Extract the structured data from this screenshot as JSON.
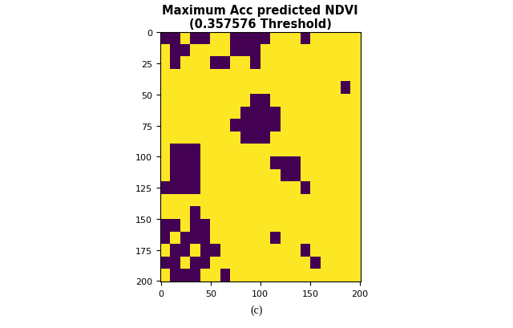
{
  "chart_data": {
    "type": "heatmap",
    "title": "Maximum Acc predicted NDVI\n(0.357576 Threshold)",
    "caption": "(c)",
    "xlim": [
      -0.5,
      200.5
    ],
    "ylim": [
      200.5,
      -0.5
    ],
    "xticks": [
      0,
      50,
      100,
      150,
      200
    ],
    "yticks": [
      0,
      25,
      50,
      75,
      100,
      125,
      150,
      175,
      200
    ],
    "colors": [
      "#440154",
      "#fde725"
    ],
    "grid": false,
    "cells": [
      [
        0,
        0,
        1,
        0,
        0,
        1,
        1,
        0,
        0,
        0,
        0,
        1,
        1,
        1,
        0,
        1,
        1,
        1,
        1,
        1
      ],
      [
        1,
        0,
        0,
        1,
        1,
        1,
        1,
        0,
        0,
        0,
        1,
        1,
        1,
        1,
        1,
        1,
        1,
        1,
        1,
        1
      ],
      [
        1,
        0,
        1,
        1,
        1,
        0,
        0,
        1,
        1,
        0,
        1,
        1,
        1,
        1,
        1,
        1,
        1,
        1,
        1,
        1
      ],
      [
        1,
        1,
        1,
        1,
        1,
        1,
        1,
        1,
        1,
        1,
        1,
        1,
        1,
        1,
        1,
        1,
        1,
        1,
        1,
        1
      ],
      [
        1,
        1,
        1,
        1,
        1,
        1,
        1,
        1,
        1,
        1,
        1,
        1,
        1,
        1,
        1,
        1,
        1,
        1,
        0,
        1
      ],
      [
        1,
        1,
        1,
        1,
        1,
        1,
        1,
        1,
        1,
        0,
        0,
        1,
        1,
        1,
        1,
        1,
        1,
        1,
        1,
        1
      ],
      [
        1,
        1,
        1,
        1,
        1,
        1,
        1,
        1,
        0,
        0,
        0,
        0,
        1,
        1,
        1,
        1,
        1,
        1,
        1,
        1
      ],
      [
        1,
        1,
        1,
        1,
        1,
        1,
        1,
        0,
        0,
        0,
        0,
        0,
        1,
        1,
        1,
        1,
        1,
        1,
        1,
        1
      ],
      [
        1,
        1,
        1,
        1,
        1,
        1,
        1,
        1,
        0,
        0,
        0,
        1,
        1,
        1,
        1,
        1,
        1,
        1,
        1,
        1
      ],
      [
        1,
        0,
        0,
        0,
        1,
        1,
        1,
        1,
        1,
        1,
        1,
        1,
        1,
        1,
        1,
        1,
        1,
        1,
        1,
        1
      ],
      [
        1,
        0,
        0,
        0,
        1,
        1,
        1,
        1,
        1,
        1,
        1,
        0,
        0,
        0,
        1,
        1,
        1,
        1,
        1,
        1
      ],
      [
        1,
        0,
        0,
        0,
        1,
        1,
        1,
        1,
        1,
        1,
        1,
        1,
        0,
        0,
        1,
        1,
        1,
        1,
        1,
        1
      ],
      [
        0,
        0,
        0,
        0,
        1,
        1,
        1,
        1,
        1,
        1,
        1,
        1,
        1,
        1,
        0,
        1,
        1,
        1,
        1,
        1
      ],
      [
        1,
        1,
        1,
        1,
        1,
        1,
        1,
        1,
        1,
        1,
        1,
        1,
        1,
        1,
        1,
        1,
        1,
        1,
        1,
        1
      ],
      [
        1,
        1,
        1,
        0,
        1,
        1,
        1,
        1,
        1,
        1,
        1,
        1,
        1,
        1,
        1,
        1,
        1,
        1,
        1,
        1
      ],
      [
        0,
        0,
        1,
        0,
        0,
        1,
        1,
        1,
        1,
        1,
        1,
        1,
        1,
        1,
        1,
        1,
        1,
        1,
        1,
        1
      ],
      [
        0,
        1,
        0,
        0,
        0,
        1,
        1,
        1,
        1,
        1,
        1,
        0,
        1,
        1,
        1,
        1,
        1,
        1,
        1,
        1
      ],
      [
        1,
        0,
        0,
        1,
        0,
        0,
        1,
        1,
        1,
        1,
        1,
        1,
        1,
        1,
        0,
        1,
        1,
        1,
        1,
        1
      ],
      [
        0,
        0,
        1,
        0,
        0,
        1,
        1,
        1,
        1,
        1,
        1,
        1,
        1,
        1,
        1,
        0,
        1,
        1,
        1,
        1
      ],
      [
        1,
        0,
        0,
        0,
        1,
        1,
        0,
        1,
        1,
        1,
        1,
        1,
        1,
        1,
        1,
        1,
        1,
        1,
        1,
        1
      ]
    ]
  }
}
